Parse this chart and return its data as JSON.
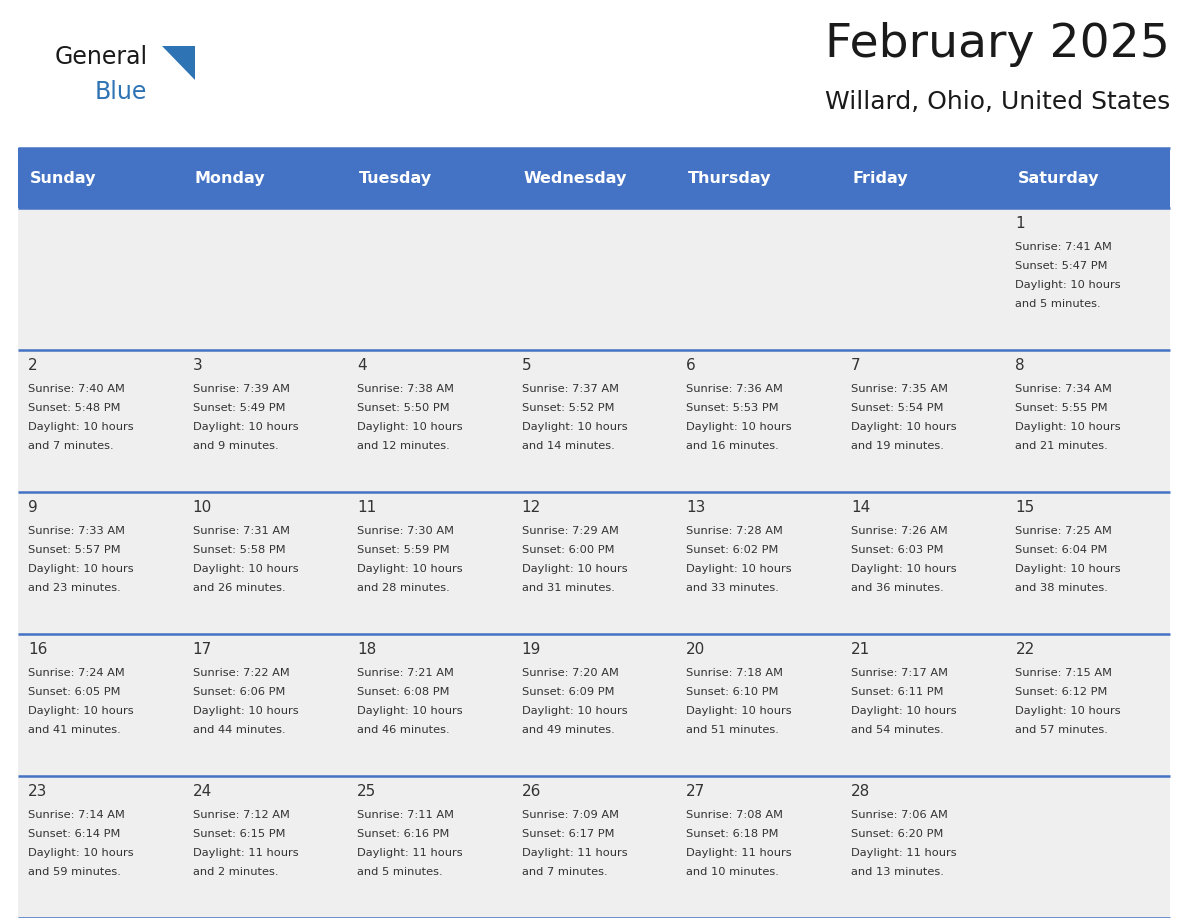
{
  "title": "February 2025",
  "subtitle": "Willard, Ohio, United States",
  "days_of_week": [
    "Sunday",
    "Monday",
    "Tuesday",
    "Wednesday",
    "Thursday",
    "Friday",
    "Saturday"
  ],
  "header_bg": "#4472C4",
  "header_text_color": "#FFFFFF",
  "cell_bg": "#EFEFEF",
  "separator_color": "#4472C4",
  "text_color": "#333333",
  "title_color": "#1a1a1a",
  "logo_general_color": "#1a1a1a",
  "logo_blue_color": "#2E74B5",
  "logo_triangle_color": "#2E74B5",
  "calendar": [
    [
      {
        "day": null
      },
      {
        "day": null
      },
      {
        "day": null
      },
      {
        "day": null
      },
      {
        "day": null
      },
      {
        "day": null
      },
      {
        "day": 1,
        "sunrise": "7:41 AM",
        "sunset": "5:47 PM",
        "daylight": "10 hours and 5 minutes."
      }
    ],
    [
      {
        "day": 2,
        "sunrise": "7:40 AM",
        "sunset": "5:48 PM",
        "daylight": "10 hours and 7 minutes."
      },
      {
        "day": 3,
        "sunrise": "7:39 AM",
        "sunset": "5:49 PM",
        "daylight": "10 hours and 9 minutes."
      },
      {
        "day": 4,
        "sunrise": "7:38 AM",
        "sunset": "5:50 PM",
        "daylight": "10 hours and 12 minutes."
      },
      {
        "day": 5,
        "sunrise": "7:37 AM",
        "sunset": "5:52 PM",
        "daylight": "10 hours and 14 minutes."
      },
      {
        "day": 6,
        "sunrise": "7:36 AM",
        "sunset": "5:53 PM",
        "daylight": "10 hours and 16 minutes."
      },
      {
        "day": 7,
        "sunrise": "7:35 AM",
        "sunset": "5:54 PM",
        "daylight": "10 hours and 19 minutes."
      },
      {
        "day": 8,
        "sunrise": "7:34 AM",
        "sunset": "5:55 PM",
        "daylight": "10 hours and 21 minutes."
      }
    ],
    [
      {
        "day": 9,
        "sunrise": "7:33 AM",
        "sunset": "5:57 PM",
        "daylight": "10 hours and 23 minutes."
      },
      {
        "day": 10,
        "sunrise": "7:31 AM",
        "sunset": "5:58 PM",
        "daylight": "10 hours and 26 minutes."
      },
      {
        "day": 11,
        "sunrise": "7:30 AM",
        "sunset": "5:59 PM",
        "daylight": "10 hours and 28 minutes."
      },
      {
        "day": 12,
        "sunrise": "7:29 AM",
        "sunset": "6:00 PM",
        "daylight": "10 hours and 31 minutes."
      },
      {
        "day": 13,
        "sunrise": "7:28 AM",
        "sunset": "6:02 PM",
        "daylight": "10 hours and 33 minutes."
      },
      {
        "day": 14,
        "sunrise": "7:26 AM",
        "sunset": "6:03 PM",
        "daylight": "10 hours and 36 minutes."
      },
      {
        "day": 15,
        "sunrise": "7:25 AM",
        "sunset": "6:04 PM",
        "daylight": "10 hours and 38 minutes."
      }
    ],
    [
      {
        "day": 16,
        "sunrise": "7:24 AM",
        "sunset": "6:05 PM",
        "daylight": "10 hours and 41 minutes."
      },
      {
        "day": 17,
        "sunrise": "7:22 AM",
        "sunset": "6:06 PM",
        "daylight": "10 hours and 44 minutes."
      },
      {
        "day": 18,
        "sunrise": "7:21 AM",
        "sunset": "6:08 PM",
        "daylight": "10 hours and 46 minutes."
      },
      {
        "day": 19,
        "sunrise": "7:20 AM",
        "sunset": "6:09 PM",
        "daylight": "10 hours and 49 minutes."
      },
      {
        "day": 20,
        "sunrise": "7:18 AM",
        "sunset": "6:10 PM",
        "daylight": "10 hours and 51 minutes."
      },
      {
        "day": 21,
        "sunrise": "7:17 AM",
        "sunset": "6:11 PM",
        "daylight": "10 hours and 54 minutes."
      },
      {
        "day": 22,
        "sunrise": "7:15 AM",
        "sunset": "6:12 PM",
        "daylight": "10 hours and 57 minutes."
      }
    ],
    [
      {
        "day": 23,
        "sunrise": "7:14 AM",
        "sunset": "6:14 PM",
        "daylight": "10 hours and 59 minutes."
      },
      {
        "day": 24,
        "sunrise": "7:12 AM",
        "sunset": "6:15 PM",
        "daylight": "11 hours and 2 minutes."
      },
      {
        "day": 25,
        "sunrise": "7:11 AM",
        "sunset": "6:16 PM",
        "daylight": "11 hours and 5 minutes."
      },
      {
        "day": 26,
        "sunrise": "7:09 AM",
        "sunset": "6:17 PM",
        "daylight": "11 hours and 7 minutes."
      },
      {
        "day": 27,
        "sunrise": "7:08 AM",
        "sunset": "6:18 PM",
        "daylight": "11 hours and 10 minutes."
      },
      {
        "day": 28,
        "sunrise": "7:06 AM",
        "sunset": "6:20 PM",
        "daylight": "11 hours and 13 minutes."
      },
      {
        "day": null
      }
    ]
  ]
}
